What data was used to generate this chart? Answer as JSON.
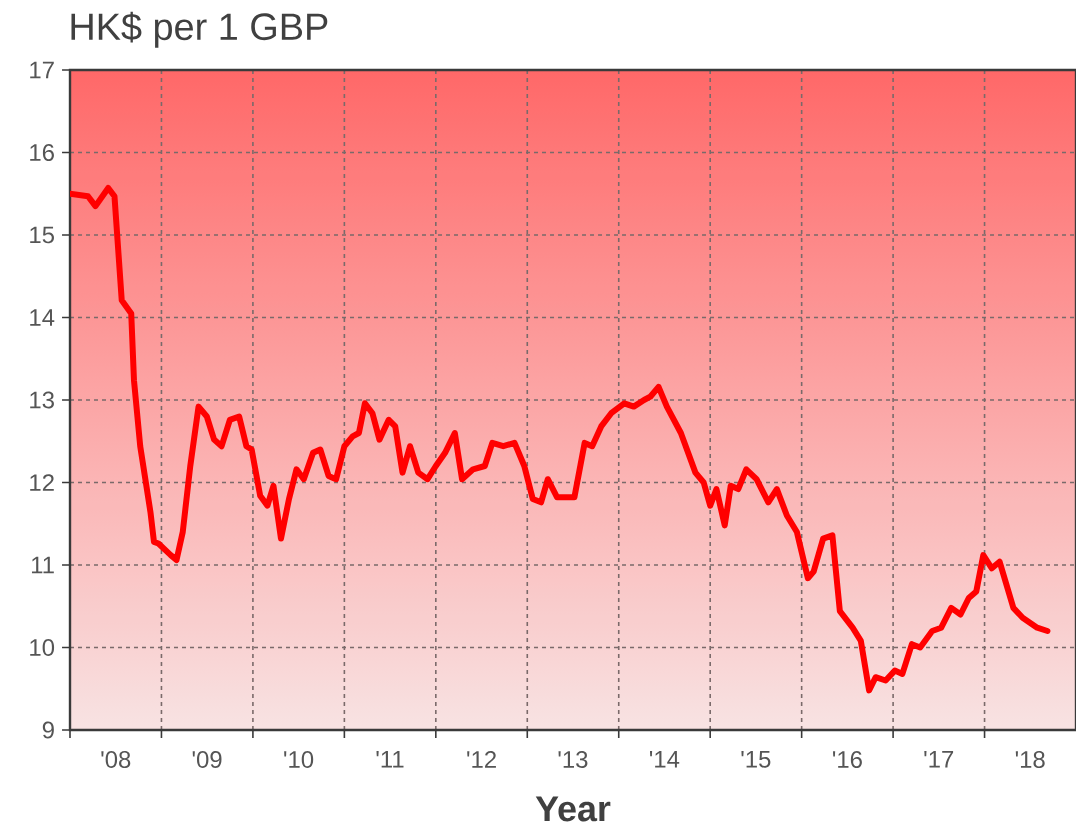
{
  "chart_data": {
    "type": "line",
    "title": "HK$ per 1 GBP",
    "xlabel": "Year",
    "x": [
      "2008-01-01",
      "2008-03-13",
      "2008-04-12",
      "2008-06-02",
      "2008-06-27",
      "2008-07-26",
      "2008-09-02",
      "2008-09-13",
      "2008-10-08",
      "2008-11-18",
      "2008-12-02",
      "2008-12-20",
      "2009-02-07",
      "2009-03-02",
      "2009-03-27",
      "2009-04-26",
      "2009-05-29",
      "2009-07-01",
      "2009-07-30",
      "2009-08-29",
      "2009-10-01",
      "2009-11-07",
      "2009-12-06",
      "2009-12-27",
      "2010-01-30",
      "2010-02-28",
      "2010-03-24",
      "2010-04-23",
      "2010-05-25",
      "2010-06-24",
      "2010-07-23",
      "2010-08-29",
      "2010-09-27",
      "2010-10-30",
      "2010-11-29",
      "2011-01-01",
      "2011-02-03",
      "2011-02-28",
      "2011-03-24",
      "2011-04-23",
      "2011-05-21",
      "2011-06-27",
      "2011-07-23",
      "2011-08-21",
      "2011-09-20",
      "2011-10-23",
      "2011-11-29",
      "2012-01-01",
      "2012-02-07",
      "2012-03-17",
      "2012-04-15",
      "2012-05-29",
      "2012-07-15",
      "2012-08-14",
      "2012-09-27",
      "2012-11-11",
      "2012-12-20",
      "2013-01-23",
      "2013-02-25",
      "2013-03-24",
      "2013-04-30",
      "2013-07-08",
      "2013-08-18",
      "2013-09-17",
      "2013-10-23",
      "2013-12-02",
      "2014-01-23",
      "2014-03-02",
      "2014-04-12",
      "2014-05-07",
      "2014-06-09",
      "2014-07-12",
      "2014-09-06",
      "2014-11-03",
      "2014-12-06",
      "2015-01-01",
      "2015-01-26",
      "2015-02-28",
      "2015-03-24",
      "2015-04-23",
      "2015-05-25",
      "2015-07-05",
      "2015-08-21",
      "2015-09-24",
      "2015-11-03",
      "2015-12-13",
      "2016-01-26",
      "2016-02-18",
      "2016-03-27",
      "2016-05-03",
      "2016-06-02",
      "2016-07-23",
      "2016-08-25",
      "2016-09-27",
      "2016-10-23",
      "2016-12-02",
      "2017-01-08",
      "2017-02-07",
      "2017-03-17",
      "2017-04-19",
      "2017-06-06",
      "2017-07-12",
      "2017-08-21",
      "2017-09-27",
      "2017-10-30",
      "2017-11-29",
      "2017-12-27",
      "2018-01-30",
      "2018-03-02",
      "2018-04-26",
      "2018-06-02",
      "2018-07-30",
      "2018-09-09"
    ],
    "series": [
      {
        "color": "#ff0000",
        "values": [
          15.5,
          15.47,
          15.35,
          15.57,
          15.47,
          14.21,
          14.05,
          13.24,
          12.44,
          11.64,
          11.28,
          11.26,
          11.12,
          11.06,
          11.4,
          12.2,
          12.92,
          12.8,
          12.52,
          12.44,
          12.76,
          12.8,
          12.44,
          12.4,
          11.84,
          11.72,
          11.96,
          11.32,
          11.8,
          12.16,
          12.04,
          12.36,
          12.4,
          12.08,
          12.04,
          12.44,
          12.56,
          12.6,
          12.96,
          12.84,
          12.52,
          12.76,
          12.68,
          12.12,
          12.44,
          12.12,
          12.04,
          12.2,
          12.36,
          12.6,
          12.04,
          12.16,
          12.2,
          12.48,
          12.44,
          12.48,
          12.2,
          11.8,
          11.76,
          12.04,
          11.82,
          11.82,
          12.48,
          12.44,
          12.68,
          12.84,
          12.96,
          12.92,
          13.0,
          13.04,
          13.16,
          12.92,
          12.6,
          12.12,
          12.0,
          11.72,
          11.92,
          11.48,
          11.96,
          11.92,
          12.16,
          12.04,
          11.76,
          11.92,
          11.6,
          11.4,
          10.84,
          10.92,
          11.32,
          11.36,
          10.44,
          10.24,
          10.08,
          9.48,
          9.64,
          9.6,
          9.72,
          9.68,
          10.04,
          10.0,
          10.2,
          10.24,
          10.48,
          10.4,
          10.6,
          10.68,
          11.12,
          10.96,
          11.04,
          10.48,
          10.36,
          10.24,
          10.2
        ]
      }
    ],
    "xlim": [
      "2008-01-01",
      "2019-01-01"
    ],
    "ylim": [
      9,
      17
    ],
    "xticks": [
      {
        "value": "2008-01-01",
        "label": null
      },
      {
        "value": "2009-01-01",
        "label": null
      },
      {
        "value": "2010-01-01",
        "label": null
      },
      {
        "value": "2011-01-01",
        "label": null
      },
      {
        "value": "2012-01-01",
        "label": null
      },
      {
        "value": "2013-01-01",
        "label": null
      },
      {
        "value": "2014-01-01",
        "label": null
      },
      {
        "value": "2015-01-01",
        "label": null
      },
      {
        "value": "2016-01-01",
        "label": null
      },
      {
        "value": "2017-01-01",
        "label": null
      },
      {
        "value": "2018-01-01",
        "label": null
      },
      {
        "value": "2008-07-02",
        "label": "'08"
      },
      {
        "value": "2009-07-02",
        "label": "'09"
      },
      {
        "value": "2010-07-02",
        "label": "'10"
      },
      {
        "value": "2011-07-02",
        "label": "'11"
      },
      {
        "value": "2012-07-02",
        "label": "'12"
      },
      {
        "value": "2013-07-02",
        "label": "'13"
      },
      {
        "value": "2014-07-02",
        "label": "'14"
      },
      {
        "value": "2015-07-02",
        "label": "'15"
      },
      {
        "value": "2016-07-02",
        "label": "'16"
      },
      {
        "value": "2017-07-02",
        "label": "'17"
      },
      {
        "value": "2018-07-02",
        "label": "'18"
      }
    ],
    "yticks": [
      9,
      10,
      11,
      12,
      13,
      14,
      15,
      16,
      17
    ],
    "grid": true
  }
}
